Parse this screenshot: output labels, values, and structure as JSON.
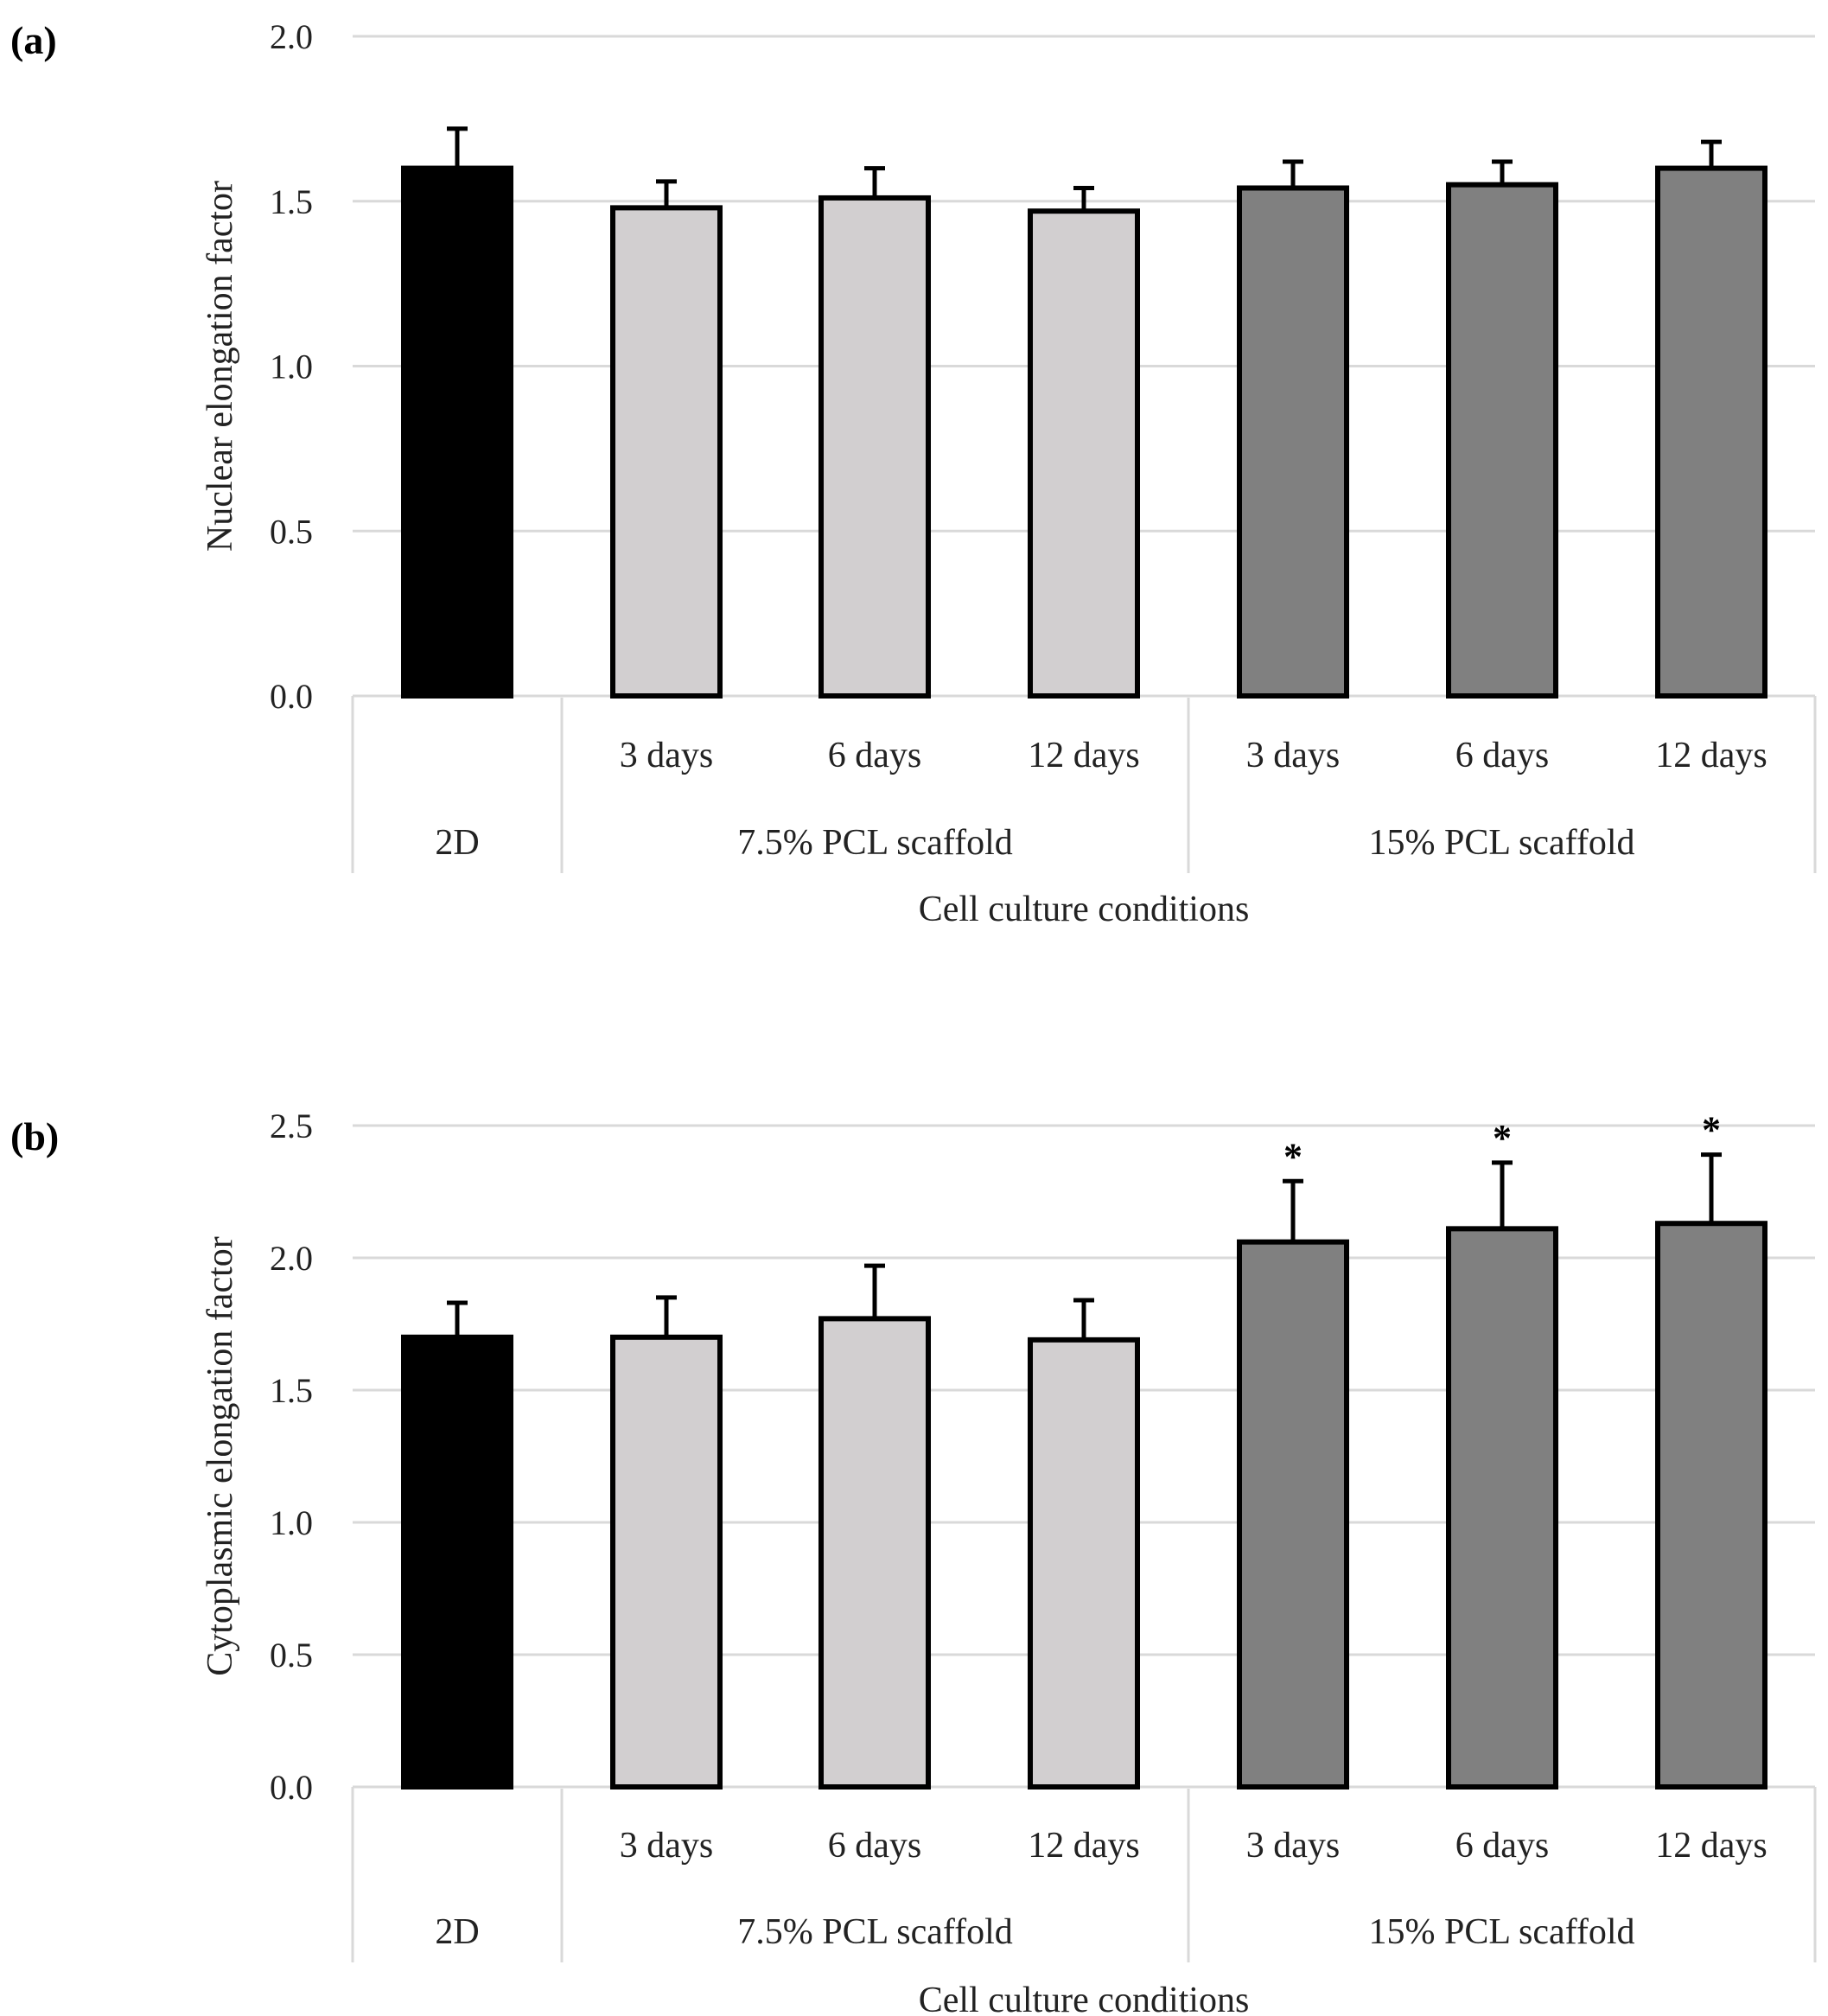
{
  "chart_data": [
    {
      "panel_label": "(a)",
      "type": "bar",
      "ylabel": "Nuclear elongation factor",
      "xlabel": "Cell culture conditions",
      "ylim": [
        0,
        2.0
      ],
      "yticks": [
        "0.0",
        "0.5",
        "1.0",
        "1.5",
        "2.0"
      ],
      "ytick_values": [
        0,
        0.5,
        1.0,
        1.5,
        2.0
      ],
      "grid": true,
      "groups": [
        {
          "label": "2D",
          "color": "#000000",
          "bars": [
            {
              "label": "",
              "value": 1.6,
              "error": 0.12,
              "significant": false
            }
          ]
        },
        {
          "label": "7.5% PCL scaffold",
          "color": "#d2cfd0",
          "bars": [
            {
              "label": "3 days",
              "value": 1.48,
              "error": 0.08,
              "significant": false
            },
            {
              "label": "6 days",
              "value": 1.51,
              "error": 0.09,
              "significant": false
            },
            {
              "label": "12 days",
              "value": 1.47,
              "error": 0.07,
              "significant": false
            }
          ]
        },
        {
          "label": "15% PCL scaffold",
          "color": "#808080",
          "bars": [
            {
              "label": "3 days",
              "value": 1.54,
              "error": 0.08,
              "significant": false
            },
            {
              "label": "6 days",
              "value": 1.55,
              "error": 0.07,
              "significant": false
            },
            {
              "label": "12 days",
              "value": 1.6,
              "error": 0.08,
              "significant": false
            }
          ]
        }
      ]
    },
    {
      "panel_label": "(b)",
      "type": "bar",
      "ylabel": "Cytoplasmic elongation factor",
      "xlabel": "Cell culture conditions",
      "ylim": [
        0,
        2.5
      ],
      "yticks": [
        "0.0",
        "0.5",
        "1.0",
        "1.5",
        "2.0",
        "2.5"
      ],
      "ytick_values": [
        0,
        0.5,
        1.0,
        1.5,
        2.0,
        2.5
      ],
      "grid": true,
      "significance_marker": "*",
      "groups": [
        {
          "label": "2D",
          "color": "#000000",
          "bars": [
            {
              "label": "",
              "value": 1.7,
              "error": 0.13,
              "significant": false
            }
          ]
        },
        {
          "label": "7.5% PCL scaffold",
          "color": "#d2cfd0",
          "bars": [
            {
              "label": "3 days",
              "value": 1.7,
              "error": 0.15,
              "significant": false
            },
            {
              "label": "6 days",
              "value": 1.77,
              "error": 0.2,
              "significant": false
            },
            {
              "label": "12 days",
              "value": 1.69,
              "error": 0.15,
              "significant": false
            }
          ]
        },
        {
          "label": "15% PCL scaffold",
          "color": "#808080",
          "bars": [
            {
              "label": "3 days",
              "value": 2.06,
              "error": 0.23,
              "significant": true
            },
            {
              "label": "6 days",
              "value": 2.11,
              "error": 0.25,
              "significant": true
            },
            {
              "label": "12 days",
              "value": 2.13,
              "error": 0.26,
              "significant": true
            }
          ]
        }
      ]
    }
  ]
}
